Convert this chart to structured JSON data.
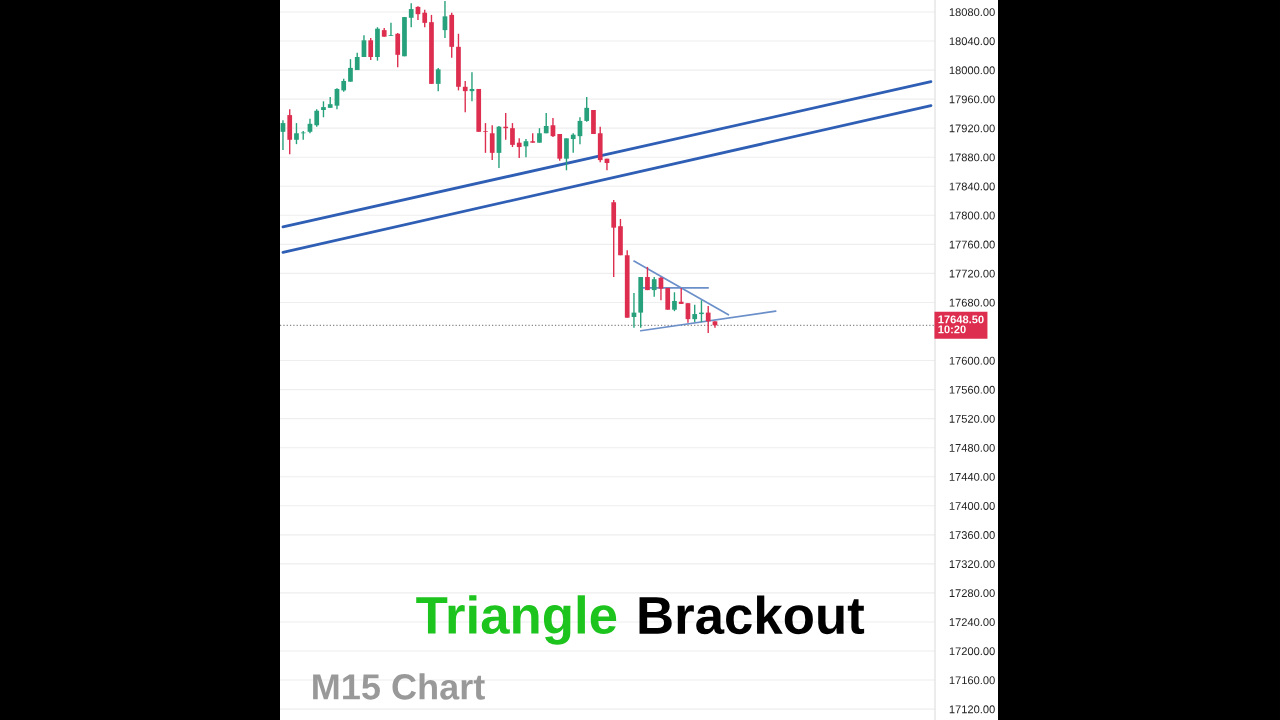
{
  "chart_data": {
    "type": "candlestick",
    "categories": [
      null,
      null,
      null,
      null,
      null,
      null,
      null,
      null,
      null,
      null,
      null,
      null,
      null,
      null,
      null,
      null,
      null,
      null,
      null,
      null,
      null,
      null,
      null,
      null,
      null,
      null,
      null,
      null,
      null,
      null,
      null,
      null,
      null,
      null,
      null,
      null,
      null,
      null,
      null,
      null,
      null,
      null,
      null,
      null,
      null,
      null,
      null,
      null,
      null,
      null,
      null,
      null,
      null,
      null,
      null,
      null,
      null,
      null,
      null,
      null,
      null,
      null,
      null,
      null,
      null,
      null,
      null,
      null,
      null,
      null,
      null,
      null,
      null,
      null,
      null,
      null,
      null,
      null,
      null,
      null,
      null,
      null,
      null,
      null,
      null,
      null,
      null,
      null,
      null,
      null,
      null,
      null,
      null,
      null,
      null,
      null,
      null
    ],
    "ohlc": [
      [
        17915,
        17931,
        17890,
        17927
      ],
      [
        17938,
        17946,
        17884,
        17904
      ],
      [
        17904,
        17927,
        17898,
        17913
      ],
      [
        17913,
        17916,
        17904,
        17914
      ],
      [
        17915,
        17933,
        17913,
        17926
      ],
      [
        17924,
        17946,
        17922,
        17944
      ],
      [
        17945,
        17957,
        17935,
        17949
      ],
      [
        17948,
        17963,
        17948,
        17953
      ],
      [
        17951,
        17975,
        17946,
        17974
      ],
      [
        17972,
        17988,
        17970,
        17985
      ],
      [
        17984,
        18015,
        17984,
        18003
      ],
      [
        18000,
        18024,
        18000,
        18018
      ],
      [
        18018,
        18048,
        18018,
        18041
      ],
      [
        18041,
        18044,
        18014,
        18018
      ],
      [
        18018,
        18059,
        18013,
        18057
      ],
      [
        18055,
        18058,
        18046,
        18046
      ],
      [
        18047,
        18065,
        18047,
        18048
      ],
      [
        18050,
        18051,
        18004,
        18021
      ],
      [
        18019,
        18073,
        18019,
        18073
      ],
      [
        18072,
        18092,
        18059,
        18084
      ],
      [
        18087,
        18088,
        18069,
        18077
      ],
      [
        18079,
        18083,
        18059,
        18065
      ],
      [
        18066,
        18076,
        17981,
        17981
      ],
      [
        17981,
        18003,
        17971,
        18001
      ],
      [
        18055,
        18095,
        18044,
        18074
      ],
      [
        18076,
        18079,
        18017,
        18032
      ],
      [
        18032,
        18050,
        17972,
        17977
      ],
      [
        17977,
        17985,
        17942,
        17971
      ],
      [
        17971,
        17997,
        17957,
        17974
      ],
      [
        17974,
        17974,
        17915,
        17915
      ],
      [
        17916,
        17927,
        17886,
        17915
      ],
      [
        17913,
        17924,
        17876,
        17886
      ],
      [
        17886,
        17923,
        17865,
        17922
      ],
      [
        17922,
        17941,
        17904,
        17920
      ],
      [
        17920,
        17927,
        17894,
        17897
      ],
      [
        17900,
        17906,
        17879,
        17894
      ],
      [
        17895,
        17905,
        17880,
        17902
      ],
      [
        17902,
        17913,
        17900,
        17900
      ],
      [
        17900,
        17920,
        17900,
        17913
      ],
      [
        17913,
        17941,
        17913,
        17923
      ],
      [
        17924,
        17934,
        17908,
        17909
      ],
      [
        17912,
        17912,
        17875,
        17878
      ],
      [
        17878,
        17906,
        17862,
        17906
      ],
      [
        17905,
        17913,
        17886,
        17911
      ],
      [
        17909,
        17935,
        17898,
        17930
      ],
      [
        17930,
        17963,
        17929,
        17948
      ],
      [
        17945,
        17945,
        17912,
        17912
      ],
      [
        17913,
        17922,
        17873,
        17876
      ],
      [
        17878,
        17878,
        17862,
        17872
      ],
      [
        17818,
        17821,
        17715,
        17783
      ],
      [
        17785,
        17795,
        17745,
        17745
      ],
      [
        17745,
        17752,
        17659,
        17659
      ],
      [
        17660,
        17693,
        17645,
        17666
      ],
      [
        17666,
        17715,
        17645,
        17715
      ],
      [
        17715,
        17729,
        17697,
        17697
      ],
      [
        17697,
        17715,
        17688,
        17712
      ],
      [
        17714,
        17715,
        17683,
        17699
      ],
      [
        17700,
        17700,
        17670,
        17670
      ],
      [
        17670,
        17694,
        17668,
        17682
      ],
      [
        17681,
        17700,
        17678,
        17678
      ],
      [
        17679,
        17679,
        17652,
        17657
      ],
      [
        17657,
        17677,
        17653,
        17664
      ],
      [
        17664,
        17683,
        17653,
        17666
      ],
      [
        17666,
        17675,
        17638,
        17654
      ],
      [
        17654,
        17654,
        17645,
        17648.5
      ],
      null,
      null,
      null,
      null,
      null,
      null,
      null,
      null,
      null,
      null,
      null,
      null,
      null,
      null,
      null,
      null,
      null,
      null,
      null,
      null,
      null,
      null,
      null,
      null,
      null,
      null,
      null,
      null,
      null,
      null,
      null,
      null
    ],
    "colors": [
      "#26a17b",
      "#dd2e4f",
      "#26a17b",
      "#26a17b",
      "#26a17b",
      "#26a17b",
      "#26a17b",
      "#26a17b",
      "#26a17b",
      "#26a17b",
      "#26a17b",
      "#26a17b",
      "#26a17b",
      "#dd2e4f",
      "#26a17b",
      "#dd2e4f",
      "#26a17b",
      "#dd2e4f",
      "#26a17b",
      "#26a17b",
      "#dd2e4f",
      "#dd2e4f",
      "#dd2e4f",
      "#26a17b",
      "#26a17b",
      "#dd2e4f",
      "#dd2e4f",
      "#dd2e4f",
      "#26a17b",
      "#dd2e4f",
      "#dd2e4f",
      "#dd2e4f",
      "#26a17b",
      "#dd2e4f",
      "#dd2e4f",
      "#dd2e4f",
      "#26a17b",
      "#dd2e4f",
      "#26a17b",
      "#26a17b",
      "#dd2e4f",
      "#dd2e4f",
      "#26a17b",
      "#26a17b",
      "#26a17b",
      "#26a17b",
      "#dd2e4f",
      "#dd2e4f",
      "#dd2e4f",
      "#dd2e4f",
      "#dd2e4f",
      "#dd2e4f",
      "#26a17b",
      "#26a17b",
      "#dd2e4f",
      "#26a17b",
      "#dd2e4f",
      "#dd2e4f",
      "#26a17b",
      "#dd2e4f",
      "#dd2e4f",
      "#26a17b",
      "#26a17b",
      "#dd2e4f",
      "#dd2e4f",
      null,
      null,
      null,
      null,
      null,
      null,
      null,
      null,
      null,
      null,
      null,
      null,
      null,
      null,
      null,
      null,
      null,
      null,
      null,
      null,
      null,
      null,
      null,
      null,
      null,
      null,
      null,
      null,
      null,
      null,
      null,
      null
    ],
    "series": [
      {
        "type": "line",
        "color": "#2f5eb5",
        "values": [
          17784,
          null,
          null,
          null,
          null,
          null,
          null,
          null,
          null,
          null,
          null,
          null,
          null,
          null,
          null,
          null,
          null,
          null,
          null,
          null,
          null,
          null,
          null,
          null,
          null,
          null,
          null,
          null,
          null,
          null,
          null,
          null,
          null,
          null,
          null,
          null,
          null,
          null,
          null,
          null,
          null,
          null,
          null,
          null,
          null,
          null,
          null,
          null,
          null,
          null,
          null,
          null,
          null,
          null,
          null,
          null,
          null,
          null,
          null,
          null,
          null,
          null,
          null,
          null,
          null,
          null,
          null,
          null,
          null,
          null,
          null,
          null,
          null,
          null,
          null,
          null,
          null,
          null,
          null,
          null,
          null,
          null,
          null,
          null,
          null,
          null,
          null,
          null,
          null,
          null,
          null,
          null,
          null,
          null,
          null,
          null,
          17984
        ]
      },
      {
        "type": "line",
        "color": "#2f5eb5",
        "values": [
          17749,
          null,
          null,
          null,
          null,
          null,
          null,
          null,
          null,
          null,
          null,
          null,
          null,
          null,
          null,
          null,
          null,
          null,
          null,
          null,
          null,
          null,
          null,
          null,
          null,
          null,
          null,
          null,
          null,
          null,
          null,
          null,
          null,
          null,
          null,
          null,
          null,
          null,
          null,
          null,
          null,
          null,
          null,
          null,
          null,
          null,
          null,
          null,
          null,
          null,
          null,
          null,
          null,
          null,
          null,
          null,
          null,
          null,
          null,
          null,
          null,
          null,
          null,
          null,
          null,
          null,
          null,
          null,
          null,
          null,
          null,
          null,
          null,
          null,
          null,
          null,
          null,
          null,
          null,
          null,
          null,
          null,
          null,
          null,
          null,
          null,
          null,
          null,
          null,
          null,
          null,
          null,
          null,
          null,
          null,
          null,
          17951
        ]
      },
      {
        "type": "line",
        "color": "#6b8fc9",
        "values": [
          null,
          null,
          null,
          null,
          null,
          null,
          null,
          null,
          null,
          null,
          null,
          null,
          null,
          null,
          null,
          null,
          null,
          null,
          null,
          null,
          null,
          null,
          null,
          null,
          null,
          null,
          null,
          null,
          null,
          null,
          null,
          null,
          null,
          null,
          null,
          null,
          null,
          null,
          null,
          null,
          null,
          null,
          null,
          null,
          null,
          null,
          null,
          null,
          null,
          null,
          null,
          null,
          17737,
          null,
          null,
          null,
          null,
          null,
          null,
          null,
          null,
          null,
          null,
          null,
          null,
          null,
          17663,
          null,
          null,
          null,
          null,
          null,
          null,
          null,
          null,
          null,
          null,
          null,
          null,
          null,
          null,
          null,
          null,
          null,
          null,
          null,
          null,
          null,
          null,
          null,
          null,
          null,
          null,
          null,
          null,
          null,
          null
        ]
      },
      {
        "type": "line",
        "color": "#6b8fc9",
        "values": [
          null,
          null,
          null,
          null,
          null,
          null,
          null,
          null,
          null,
          null,
          null,
          null,
          null,
          null,
          null,
          null,
          null,
          null,
          null,
          null,
          null,
          null,
          null,
          null,
          null,
          null,
          null,
          null,
          null,
          null,
          null,
          null,
          null,
          null,
          null,
          null,
          null,
          null,
          null,
          null,
          null,
          null,
          null,
          null,
          null,
          null,
          null,
          null,
          null,
          null,
          null,
          null,
          null,
          17700,
          null,
          null,
          null,
          null,
          null,
          null,
          null,
          null,
          null,
          17700,
          null,
          null,
          null,
          null,
          null,
          null,
          null,
          null,
          null,
          null,
          null,
          null,
          null,
          null,
          null,
          null,
          null,
          null,
          null,
          null,
          null,
          null,
          null,
          null,
          null,
          null,
          null,
          null,
          null,
          null,
          null,
          null,
          null
        ]
      },
      {
        "type": "line",
        "color": "#6b8fc9",
        "values": [
          null,
          null,
          null,
          null,
          null,
          null,
          null,
          null,
          null,
          null,
          null,
          null,
          null,
          null,
          null,
          null,
          null,
          null,
          null,
          null,
          null,
          null,
          null,
          null,
          null,
          null,
          null,
          null,
          null,
          null,
          null,
          null,
          null,
          null,
          null,
          null,
          null,
          null,
          null,
          null,
          null,
          null,
          null,
          null,
          null,
          null,
          null,
          null,
          null,
          null,
          null,
          null,
          null,
          17641,
          null,
          null,
          null,
          null,
          null,
          null,
          null,
          null,
          null,
          null,
          null,
          null,
          null,
          null,
          null,
          null,
          null,
          null,
          null,
          17668,
          null,
          null,
          null,
          null,
          null,
          null,
          null,
          null,
          null,
          null,
          null,
          null,
          null,
          null,
          null,
          null,
          null,
          null,
          null,
          null,
          null,
          null,
          null
        ]
      }
    ],
    "ylim": [
      17105,
      18096.5
    ],
    "yticks": [
      {
        "value": 17120,
        "label": "17120.00"
      },
      {
        "value": 17160,
        "label": "17160.00"
      },
      {
        "value": 17200,
        "label": "17200.00"
      },
      {
        "value": 17240,
        "label": "17240.00"
      },
      {
        "value": 17280,
        "label": "17280.00"
      },
      {
        "value": 17320,
        "label": "17320.00"
      },
      {
        "value": 17360,
        "label": "17360.00"
      },
      {
        "value": 17400,
        "label": "17400.00"
      },
      {
        "value": 17440,
        "label": "17440.00"
      },
      {
        "value": 17480,
        "label": "17480.00"
      },
      {
        "value": 17520,
        "label": "17520.00"
      },
      {
        "value": 17560,
        "label": "17560.00"
      },
      {
        "value": 17600,
        "label": "17600.00"
      },
      {
        "value": 17680,
        "label": "17680.00"
      },
      {
        "value": 17720,
        "label": "17720.00"
      },
      {
        "value": 17760,
        "label": "17760.00"
      },
      {
        "value": 17800,
        "label": "17800.00"
      },
      {
        "value": 17840,
        "label": "17840.00"
      },
      {
        "value": 17880,
        "label": "17880.00"
      },
      {
        "value": 17920,
        "label": "17920.00"
      },
      {
        "value": 17960,
        "label": "17960.00"
      },
      {
        "value": 18000,
        "label": "18000.00"
      },
      {
        "value": 18040,
        "label": "18040.00"
      },
      {
        "value": 18080,
        "label": "18080.00"
      }
    ],
    "grid": "y",
    "tick_labels": "y",
    "ref_lines": [
      {
        "axis": "y",
        "value": 17648.5,
        "label": "17648.50\n10:20",
        "color": "#888888",
        "line_style": "dotted"
      }
    ],
    "annotations": [
      "Triangle",
      "Brackout",
      "M15 Chart"
    ]
  }
}
